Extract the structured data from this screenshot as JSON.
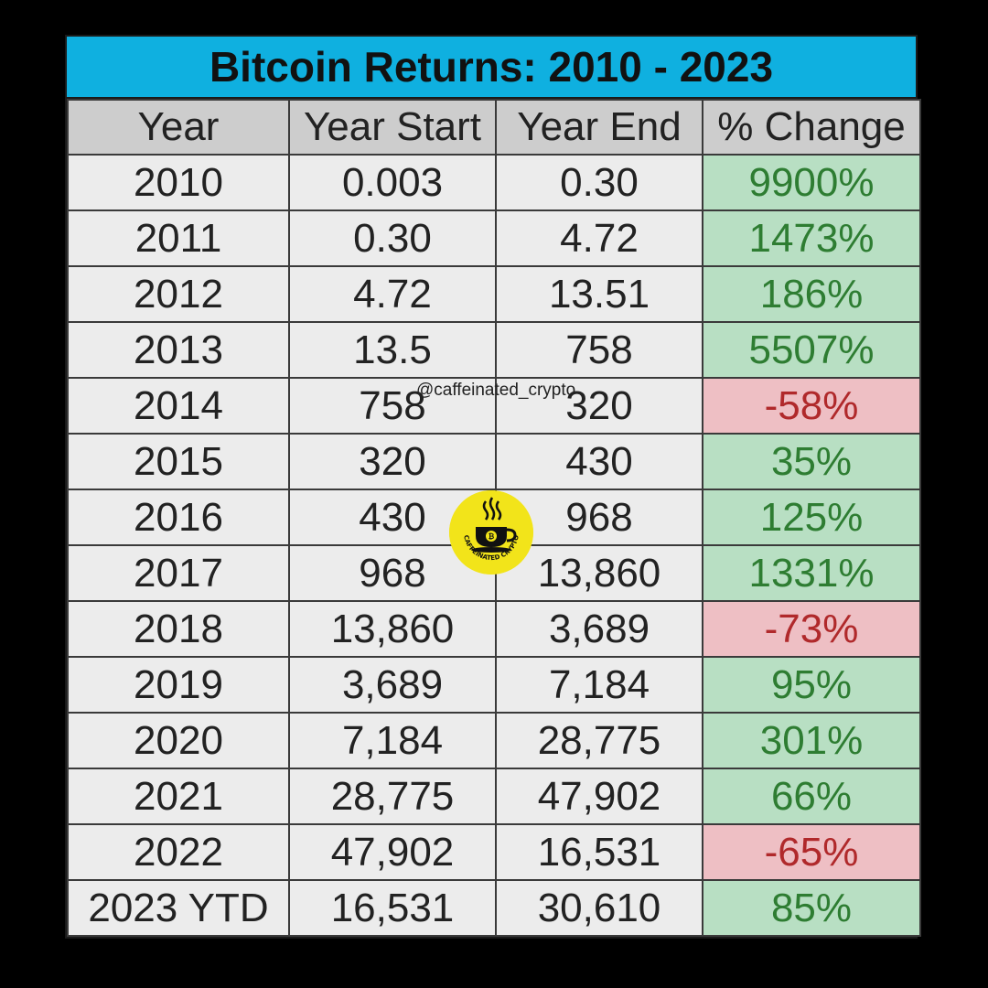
{
  "chart_data": {
    "type": "table",
    "title": "Bitcoin Returns: 2010 - 2023",
    "columns": [
      "Year",
      "Year Start",
      "Year End",
      "% Change"
    ],
    "rows": [
      {
        "year": "2010",
        "start": "0.003",
        "end": "0.30",
        "change": "9900%",
        "sign": "pos"
      },
      {
        "year": "2011",
        "start": "0.30",
        "end": "4.72",
        "change": "1473%",
        "sign": "pos"
      },
      {
        "year": "2012",
        "start": "4.72",
        "end": "13.51",
        "change": "186%",
        "sign": "pos"
      },
      {
        "year": "2013",
        "start": "13.5",
        "end": "758",
        "change": "5507%",
        "sign": "pos"
      },
      {
        "year": "2014",
        "start": "758",
        "end": "320",
        "change": "-58%",
        "sign": "neg"
      },
      {
        "year": "2015",
        "start": "320",
        "end": "430",
        "change": "35%",
        "sign": "pos"
      },
      {
        "year": "2016",
        "start": "430",
        "end": "968",
        "change": "125%",
        "sign": "pos"
      },
      {
        "year": "2017",
        "start": "968",
        "end": "13,860",
        "change": "1331%",
        "sign": "pos"
      },
      {
        "year": "2018",
        "start": "13,860",
        "end": "3,689",
        "change": "-73%",
        "sign": "neg"
      },
      {
        "year": "2019",
        "start": "3,689",
        "end": "7,184",
        "change": "95%",
        "sign": "pos"
      },
      {
        "year": "2020",
        "start": "7,184",
        "end": "28,775",
        "change": "301%",
        "sign": "pos"
      },
      {
        "year": "2021",
        "start": "28,775",
        "end": "47,902",
        "change": "66%",
        "sign": "pos"
      },
      {
        "year": "2022",
        "start": "47,902",
        "end": "16,531",
        "change": "-65%",
        "sign": "neg"
      },
      {
        "year": "2023 YTD",
        "start": "16,531",
        "end": "30,610",
        "change": "85%",
        "sign": "pos"
      }
    ]
  },
  "watermark": "@caffeinated_crypto",
  "logo": {
    "text": "CAFFEINATED CRYPTO",
    "icon": "coffee-cup-bitcoin-icon",
    "color": "#f2e41a"
  },
  "colors": {
    "header": "#0fb0e0",
    "positive_fill": "#b8dfc3",
    "negative_fill": "#eebfc4",
    "positive_text": "#2e7d32",
    "negative_text": "#b0292b"
  }
}
